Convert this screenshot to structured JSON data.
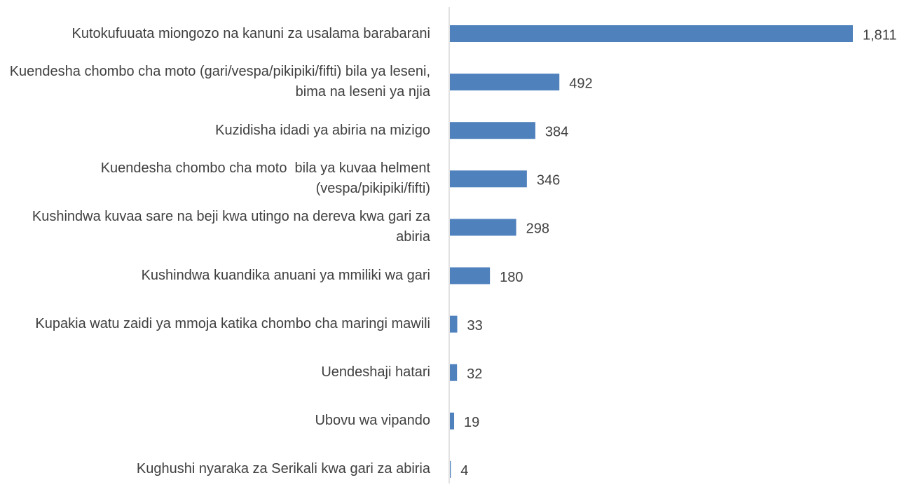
{
  "chart_data": {
    "type": "bar",
    "orientation": "horizontal",
    "color": "#4f81bd",
    "categories": [
      "Kutokufuuata miongozo na kanuni za usalama barabarani",
      "Kuendesha chombo cha moto (gari/vespa/pikipiki/fifti) bila ya leseni, bima na leseni ya njia",
      "Kuzidisha idadi ya abiria na mizigo",
      "Kuendesha chombo cha moto  bila ya kuvaa helment (vespa/pikipiki/fifti)",
      "Kushindwa kuvaa sare na beji kwa utingo na dereva kwa gari za abiria",
      "Kushindwa kuandika anuani ya mmiliki wa gari",
      "Kupakia watu zaidi ya mmoja katika chombo cha maringi mawili",
      "Uendeshaji hatari",
      "Ubovu wa vipando",
      "Kughushi nyaraka za Serikali kwa gari za abiria"
    ],
    "values": [
      1811,
      492,
      384,
      346,
      298,
      180,
      33,
      32,
      19,
      4
    ],
    "value_labels": [
      "1,811",
      "492",
      "384",
      "346",
      "298",
      "180",
      "33",
      "32",
      "19",
      "4"
    ]
  }
}
